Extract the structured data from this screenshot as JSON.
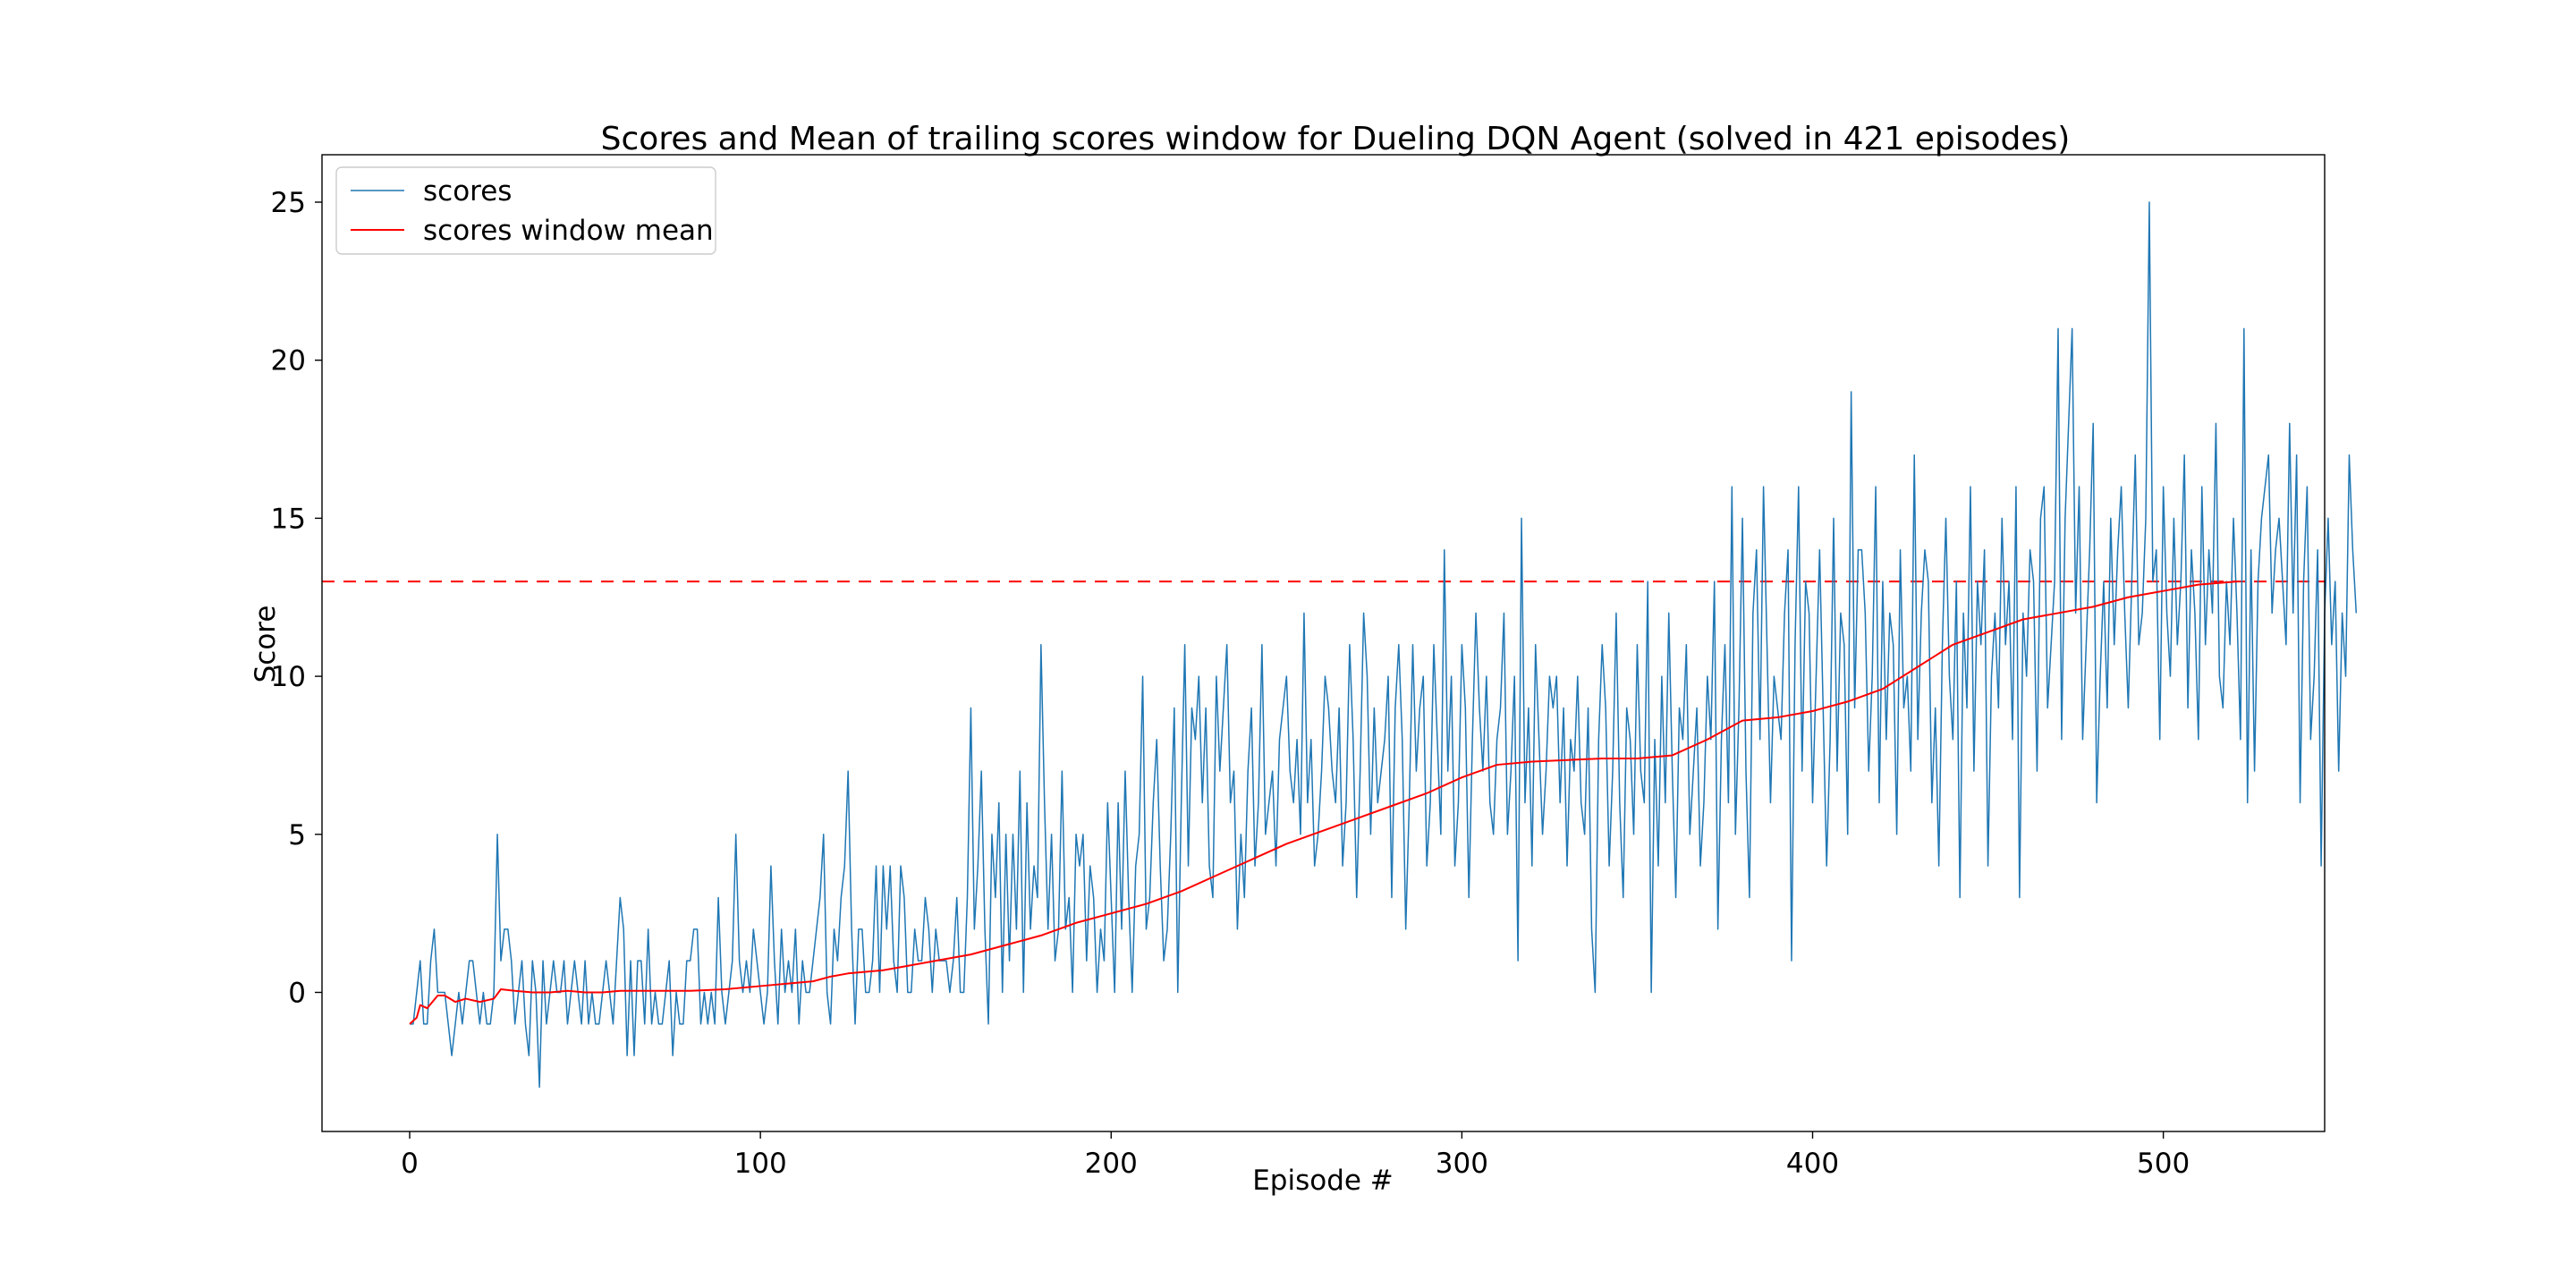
{
  "chart_data": {
    "type": "line",
    "title": "Scores and Mean of trailing scores window for Dueling DQN Agent (solved in 421 episodes)",
    "xlabel": "Episode #",
    "ylabel": "Score",
    "xlim": [
      -25,
      546
    ],
    "ylim": [
      -4.4,
      26.5
    ],
    "xticks": [
      0,
      100,
      200,
      300,
      400,
      500
    ],
    "yticks": [
      0,
      5,
      10,
      15,
      20,
      25
    ],
    "grid": false,
    "legend_position": "top-left",
    "threshold": {
      "value": 13,
      "color": "#ff0000",
      "style": "dashed"
    },
    "series": [
      {
        "name": "scores",
        "color": "#1f77b4",
        "values": [
          -1,
          -1,
          0,
          1,
          -1,
          -1,
          1,
          2,
          0,
          0,
          0,
          -1,
          -2,
          -1,
          0,
          -1,
          0,
          1,
          1,
          0,
          -1,
          0,
          -1,
          -1,
          0,
          5,
          1,
          2,
          2,
          1,
          -1,
          0,
          1,
          -1,
          -2,
          1,
          0,
          -3,
          1,
          -1,
          0,
          1,
          0,
          0,
          1,
          -1,
          0,
          1,
          0,
          -1,
          1,
          -1,
          0,
          -1,
          -1,
          0,
          1,
          0,
          -1,
          1,
          3,
          2,
          -2,
          1,
          -2,
          1,
          1,
          -1,
          2,
          -1,
          0,
          -1,
          -1,
          0,
          1,
          -2,
          0,
          -1,
          -1,
          1,
          1,
          2,
          2,
          -1,
          0,
          -1,
          0,
          -1,
          3,
          0,
          -1,
          0,
          1,
          5,
          1,
          0,
          1,
          0,
          2,
          1,
          0,
          -1,
          0,
          4,
          1,
          -1,
          2,
          0,
          1,
          0,
          2,
          -1,
          1,
          0,
          0,
          1,
          2,
          3,
          5,
          0,
          -1,
          2,
          1,
          3,
          4,
          7,
          2,
          -1,
          2,
          2,
          0,
          0,
          1,
          4,
          0,
          4,
          2,
          4,
          1,
          0,
          4,
          3,
          0,
          0,
          2,
          1,
          1,
          3,
          2,
          0,
          2,
          1,
          1,
          1,
          0,
          1,
          3,
          0,
          0,
          3,
          9,
          2,
          4,
          7,
          2,
          -1,
          5,
          3,
          6,
          0,
          5,
          1,
          5,
          2,
          7,
          0,
          6,
          2,
          4,
          3,
          11,
          6,
          2,
          5,
          1,
          2,
          7,
          2,
          3,
          0,
          5,
          4,
          5,
          1,
          4,
          3,
          0,
          2,
          1,
          6,
          3,
          0,
          6,
          2,
          7,
          3,
          0,
          4,
          5,
          10,
          2,
          3,
          6,
          8,
          4,
          1,
          2,
          5,
          9,
          0,
          6,
          11,
          4,
          9,
          8,
          10,
          6,
          9,
          4,
          3,
          10,
          7,
          9,
          11,
          6,
          7,
          2,
          5,
          3,
          7,
          9,
          4,
          6,
          11,
          5,
          6,
          7,
          4,
          8,
          9,
          10,
          7,
          6,
          8,
          5,
          12,
          6,
          8,
          4,
          5,
          7,
          10,
          9,
          7,
          6,
          9,
          4,
          6,
          11,
          8,
          3,
          7,
          12,
          10,
          5,
          9,
          6,
          7,
          8,
          10,
          3,
          9,
          11,
          8,
          2,
          6,
          11,
          7,
          9,
          10,
          4,
          6,
          11,
          8,
          5,
          14,
          7,
          10,
          4,
          6,
          11,
          9,
          3,
          8,
          12,
          9,
          7,
          10,
          6,
          5,
          8,
          9,
          12,
          5,
          7,
          10,
          1,
          15,
          6,
          9,
          4,
          11,
          8,
          5,
          7,
          10,
          9,
          10,
          6,
          9,
          4,
          8,
          7,
          10,
          6,
          5,
          9,
          2,
          0,
          8,
          11,
          9,
          4,
          7,
          12,
          6,
          3,
          9,
          8,
          5,
          11,
          7,
          6,
          13,
          0,
          8,
          4,
          10,
          6,
          12,
          7,
          3,
          9,
          8,
          11,
          5,
          7,
          9,
          4,
          6,
          10,
          8,
          13,
          2,
          8,
          11,
          6,
          16,
          5,
          9,
          15,
          7,
          3,
          12,
          14,
          8,
          16,
          11,
          6,
          10,
          9,
          8,
          12,
          14,
          1,
          11,
          16,
          7,
          13,
          12,
          6,
          10,
          14,
          9,
          4,
          8,
          15,
          7,
          12,
          11,
          5,
          19,
          9,
          14,
          14,
          12,
          7,
          10,
          16,
          6,
          13,
          8,
          12,
          11,
          5,
          14,
          9,
          10,
          7,
          17,
          8,
          12,
          14,
          13,
          6,
          9,
          4,
          11,
          15,
          10,
          8,
          13,
          3,
          12,
          9,
          16,
          7,
          13,
          11,
          14,
          4,
          10,
          12,
          9,
          15,
          11,
          13,
          8,
          16,
          3,
          12,
          10,
          14,
          13,
          7,
          15,
          16,
          9,
          11,
          13,
          21,
          8,
          15,
          18,
          21,
          12,
          16,
          8,
          11,
          14,
          18,
          6,
          10,
          13,
          9,
          15,
          11,
          14,
          16,
          12,
          9,
          13,
          17,
          11,
          12,
          15,
          25,
          13,
          14,
          8,
          16,
          12,
          10,
          15,
          11,
          13,
          17,
          9,
          14,
          12,
          8,
          16,
          11,
          14,
          12,
          18,
          10,
          9,
          13,
          11,
          15,
          12,
          8,
          21,
          6,
          14,
          7,
          13,
          15,
          16,
          17,
          12,
          14,
          15,
          13,
          11,
          18,
          12,
          17,
          6,
          13,
          16,
          8,
          10,
          14,
          4,
          12,
          15,
          11,
          13,
          7,
          12,
          10,
          17,
          14,
          12
        ]
      },
      {
        "name": "scores window mean",
        "color": "#ff0000",
        "points": [
          [
            0,
            -1
          ],
          [
            2,
            -0.8
          ],
          [
            3,
            -0.4
          ],
          [
            5,
            -0.5
          ],
          [
            8,
            -0.1
          ],
          [
            10,
            -0.1
          ],
          [
            13,
            -0.3
          ],
          [
            16,
            -0.2
          ],
          [
            20,
            -0.3
          ],
          [
            24,
            -0.2
          ],
          [
            26,
            0.1
          ],
          [
            30,
            0.05
          ],
          [
            35,
            0.0
          ],
          [
            40,
            0.0
          ],
          [
            45,
            0.05
          ],
          [
            50,
            0.0
          ],
          [
            55,
            0.0
          ],
          [
            60,
            0.05
          ],
          [
            70,
            0.05
          ],
          [
            80,
            0.05
          ],
          [
            90,
            0.1
          ],
          [
            100,
            0.2
          ],
          [
            110,
            0.3
          ],
          [
            115,
            0.35
          ],
          [
            120,
            0.5
          ],
          [
            125,
            0.6
          ],
          [
            130,
            0.65
          ],
          [
            135,
            0.7
          ],
          [
            140,
            0.8
          ],
          [
            150,
            1.0
          ],
          [
            160,
            1.2
          ],
          [
            170,
            1.5
          ],
          [
            180,
            1.8
          ],
          [
            190,
            2.2
          ],
          [
            200,
            2.5
          ],
          [
            210,
            2.8
          ],
          [
            220,
            3.2
          ],
          [
            230,
            3.7
          ],
          [
            240,
            4.2
          ],
          [
            250,
            4.7
          ],
          [
            260,
            5.1
          ],
          [
            270,
            5.5
          ],
          [
            280,
            5.9
          ],
          [
            290,
            6.3
          ],
          [
            300,
            6.8
          ],
          [
            310,
            7.2
          ],
          [
            320,
            7.3
          ],
          [
            330,
            7.35
          ],
          [
            340,
            7.4
          ],
          [
            350,
            7.4
          ],
          [
            360,
            7.5
          ],
          [
            370,
            8.0
          ],
          [
            380,
            8.6
          ],
          [
            390,
            8.7
          ],
          [
            400,
            8.9
          ],
          [
            410,
            9.2
          ],
          [
            420,
            9.6
          ],
          [
            430,
            10.3
          ],
          [
            440,
            11.0
          ],
          [
            450,
            11.4
          ],
          [
            460,
            11.8
          ],
          [
            470,
            12.0
          ],
          [
            480,
            12.2
          ],
          [
            490,
            12.5
          ],
          [
            500,
            12.7
          ],
          [
            510,
            12.9
          ],
          [
            521,
            13.0
          ]
        ]
      }
    ]
  }
}
